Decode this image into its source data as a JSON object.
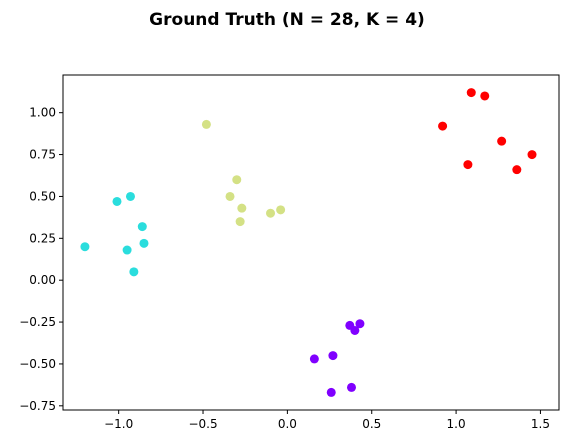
{
  "chart_data": {
    "type": "scatter",
    "title": "Ground Truth (N = 28, K = 4)",
    "xlabel": "",
    "ylabel": "",
    "xlim": [
      -1.33,
      1.61
    ],
    "ylim": [
      -0.775,
      1.225
    ],
    "xticks": [
      -1.0,
      -0.5,
      0.0,
      0.5,
      1.0,
      1.5
    ],
    "xtick_labels": [
      "−1.0",
      "−0.5",
      "0.0",
      "0.5",
      "1.0",
      "1.5"
    ],
    "yticks": [
      -0.75,
      -0.5,
      -0.25,
      0.0,
      0.25,
      0.5,
      0.75,
      1.0
    ],
    "ytick_labels": [
      "−0.75",
      "−0.50",
      "−0.25",
      "0.00",
      "0.25",
      "0.50",
      "0.75",
      "1.00"
    ],
    "grid": false,
    "series": [
      {
        "color": "#ff0000",
        "points": [
          [
            0.92,
            0.92
          ],
          [
            1.09,
            1.12
          ],
          [
            1.17,
            1.1
          ],
          [
            1.07,
            0.69
          ],
          [
            1.27,
            0.83
          ],
          [
            1.36,
            0.66
          ],
          [
            1.45,
            0.75
          ]
        ]
      },
      {
        "color": "#d4e185",
        "points": [
          [
            -0.48,
            0.93
          ],
          [
            -0.3,
            0.6
          ],
          [
            -0.34,
            0.5
          ],
          [
            -0.27,
            0.43
          ],
          [
            -0.28,
            0.35
          ],
          [
            -0.1,
            0.4
          ],
          [
            -0.04,
            0.42
          ]
        ]
      },
      {
        "color": "#2adddd",
        "points": [
          [
            -1.2,
            0.2
          ],
          [
            -1.01,
            0.47
          ],
          [
            -0.93,
            0.5
          ],
          [
            -0.86,
            0.32
          ],
          [
            -0.85,
            0.22
          ],
          [
            -0.95,
            0.18
          ],
          [
            -0.91,
            0.05
          ]
        ]
      },
      {
        "color": "#8000ff",
        "points": [
          [
            0.37,
            -0.27
          ],
          [
            0.4,
            -0.3
          ],
          [
            0.43,
            -0.26
          ],
          [
            0.27,
            -0.45
          ],
          [
            0.16,
            -0.47
          ],
          [
            0.38,
            -0.64
          ],
          [
            0.26,
            -0.67
          ]
        ]
      }
    ]
  }
}
